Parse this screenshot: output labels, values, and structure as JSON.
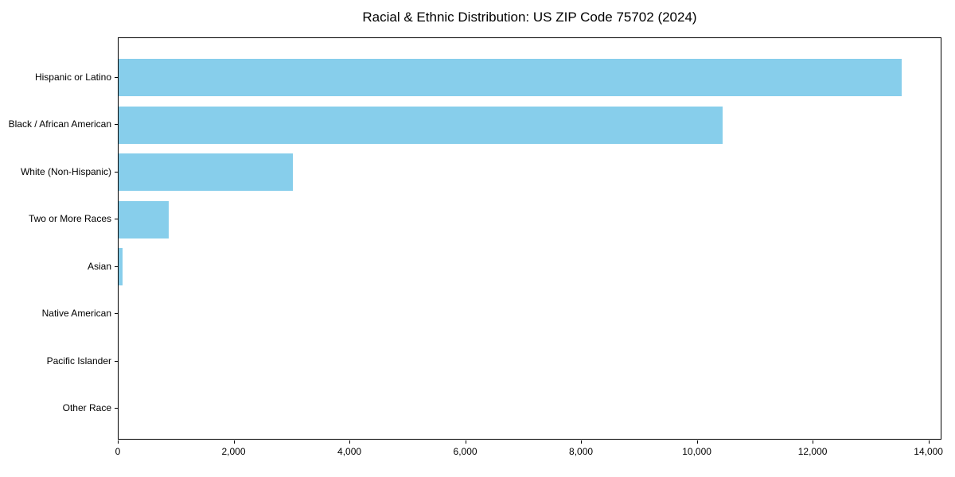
{
  "title": "Racial & Ethnic Distribution: US ZIP Code 75702 (2024)",
  "colors": {
    "bar": "#87CEEB",
    "axis": "#000000",
    "background": "#FFFFFF",
    "text": "#000000"
  },
  "chart_data": {
    "type": "bar",
    "orientation": "horizontal",
    "title": "Racial & Ethnic Distribution: US ZIP Code 75702 (2024)",
    "categories": [
      "Hispanic or Latino",
      "Black / African American",
      "White (Non-Hispanic)",
      "Two or More Races",
      "Asian",
      "Native American",
      "Pacific Islander",
      "Other Race"
    ],
    "values": [
      13550,
      10450,
      3020,
      865,
      70,
      0,
      0,
      0
    ],
    "xlabel": "",
    "ylabel": "",
    "xlim": [
      0,
      14225
    ],
    "xticks": [
      0,
      2000,
      4000,
      6000,
      8000,
      10000,
      12000,
      14000
    ],
    "xtick_labels": [
      "0",
      "2,000",
      "4,000",
      "6,000",
      "8,000",
      "10,000",
      "12,000",
      "14,000"
    ],
    "bar_color": "#87CEEB",
    "grid": false,
    "legend_position": "none"
  }
}
